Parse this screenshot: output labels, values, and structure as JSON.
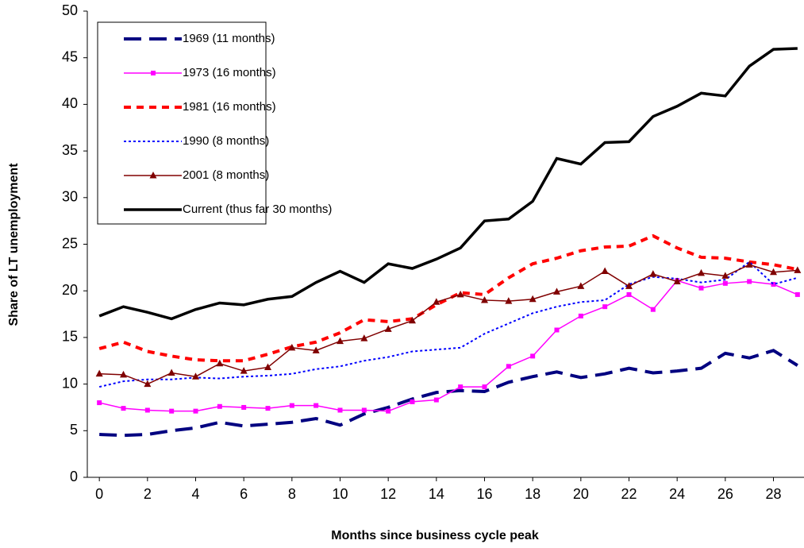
{
  "chart_data": {
    "type": "line",
    "y_label": "Share of LT unemployment",
    "x_label": "Months since business cycle peak",
    "x": [
      0,
      1,
      2,
      3,
      4,
      5,
      6,
      7,
      8,
      9,
      10,
      11,
      12,
      13,
      14,
      15,
      16,
      17,
      18,
      19,
      20,
      21,
      22,
      23,
      24,
      25,
      26,
      27,
      28,
      29
    ],
    "xlim": [
      -0.5,
      29.5
    ],
    "xticks": [
      0,
      2,
      4,
      6,
      8,
      10,
      12,
      14,
      16,
      18,
      20,
      22,
      24,
      26,
      28
    ],
    "ylim": [
      0,
      50
    ],
    "yticks": [
      0,
      5,
      10,
      15,
      20,
      25,
      30,
      35,
      40,
      45,
      50
    ],
    "grid": false,
    "legend": "upper left",
    "series": [
      {
        "name": "1969 (11 months)",
        "color": "#000080",
        "line_style": "long-dash",
        "marker": "none",
        "values": [
          4.6,
          4.5,
          4.6,
          5.0,
          5.3,
          5.9,
          5.5,
          5.7,
          5.9,
          6.3,
          5.6,
          6.8,
          7.5,
          8.4,
          9.1,
          9.3,
          9.2,
          10.2,
          10.8,
          11.3,
          10.7,
          11.1,
          11.7,
          11.2,
          11.4,
          11.7,
          13.3,
          12.8,
          13.6,
          12.0
        ]
      },
      {
        "name": "1973 (16 months)",
        "color": "#ff00ff",
        "line_style": "solid",
        "marker": "square",
        "values": [
          8.0,
          7.4,
          7.2,
          7.1,
          7.1,
          7.6,
          7.5,
          7.4,
          7.7,
          7.7,
          7.2,
          7.2,
          7.1,
          8.1,
          8.3,
          9.7,
          9.7,
          11.9,
          13.0,
          15.8,
          17.3,
          18.3,
          19.6,
          18.0,
          21.1,
          20.3,
          20.8,
          21.0,
          20.7,
          19.6
        ]
      },
      {
        "name": "1981 (16 months)",
        "color": "#ff0000",
        "line_style": "dash",
        "marker": "none",
        "values": [
          13.8,
          14.5,
          13.5,
          13.0,
          12.6,
          12.5,
          12.5,
          13.2,
          14.0,
          14.5,
          15.5,
          16.9,
          16.7,
          17.0,
          18.5,
          19.8,
          19.6,
          21.4,
          22.9,
          23.5,
          24.3,
          24.7,
          24.8,
          25.9,
          24.6,
          23.6,
          23.5,
          23.1,
          22.8,
          22.3
        ]
      },
      {
        "name": "1990 (8 months)",
        "color": "#0000ff",
        "line_style": "dotted",
        "marker": "none",
        "values": [
          9.7,
          10.3,
          10.5,
          10.5,
          10.7,
          10.6,
          10.8,
          10.9,
          11.1,
          11.6,
          11.9,
          12.5,
          12.9,
          13.5,
          13.7,
          13.9,
          15.4,
          16.5,
          17.6,
          18.3,
          18.8,
          19.0,
          20.7,
          21.5,
          21.3,
          20.9,
          21.2,
          23.1,
          20.7,
          21.4
        ]
      },
      {
        "name": "2001 (8 months)",
        "color": "#800000",
        "line_style": "solid",
        "marker": "triangle",
        "values": [
          11.1,
          11.0,
          10.0,
          11.2,
          10.8,
          12.2,
          11.4,
          11.8,
          13.9,
          13.6,
          14.6,
          14.9,
          15.9,
          16.8,
          18.8,
          19.6,
          19.0,
          18.9,
          19.1,
          19.9,
          20.5,
          22.1,
          20.5,
          21.8,
          21.0,
          21.9,
          21.6,
          22.8,
          22.0,
          22.2
        ]
      },
      {
        "name": "Current (thus far 30 months)",
        "color": "#000000",
        "line_style": "thick",
        "marker": "none",
        "values": [
          17.3,
          18.3,
          17.7,
          17.0,
          18.0,
          18.7,
          18.5,
          19.1,
          19.4,
          20.9,
          22.1,
          20.9,
          22.9,
          22.4,
          23.4,
          24.6,
          27.5,
          27.7,
          29.6,
          34.2,
          33.6,
          35.9,
          36.0,
          38.7,
          39.8,
          41.2,
          40.9,
          44.1,
          45.9,
          46.0
        ]
      }
    ]
  }
}
